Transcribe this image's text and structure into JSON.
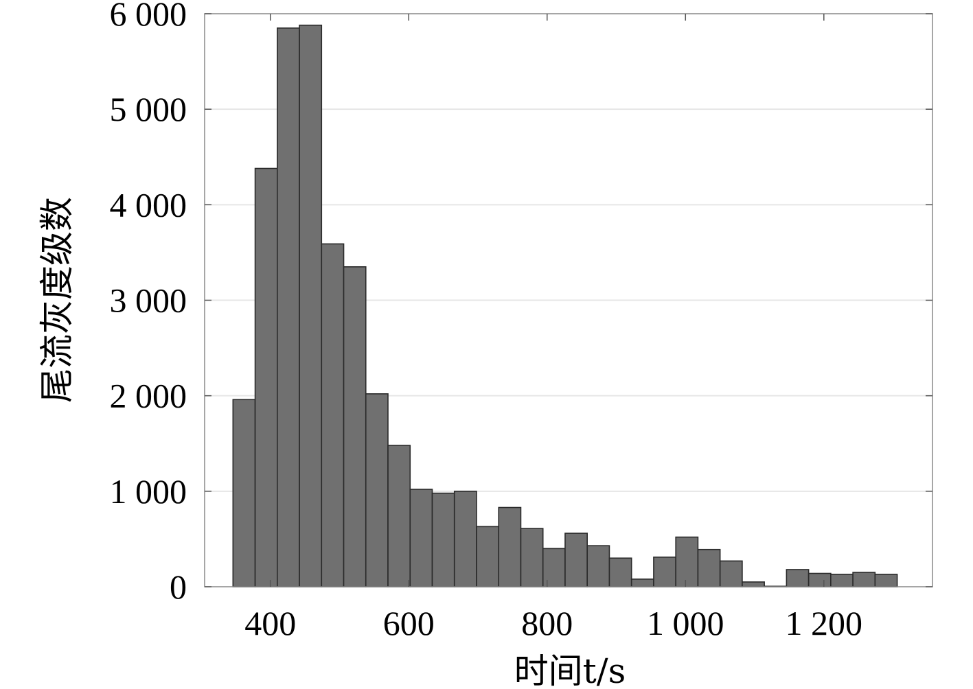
{
  "chart_data": {
    "type": "bar",
    "variant": "histogram",
    "bin_width": 32,
    "bin_start": 346,
    "bins": [
      {
        "start": 346,
        "end": 378,
        "value": 1960
      },
      {
        "start": 378,
        "end": 410,
        "value": 4380
      },
      {
        "start": 410,
        "end": 442,
        "value": 5850
      },
      {
        "start": 442,
        "end": 474,
        "value": 5880
      },
      {
        "start": 474,
        "end": 506,
        "value": 3590
      },
      {
        "start": 506,
        "end": 538,
        "value": 3350
      },
      {
        "start": 538,
        "end": 570,
        "value": 2020
      },
      {
        "start": 570,
        "end": 602,
        "value": 1480
      },
      {
        "start": 602,
        "end": 634,
        "value": 1020
      },
      {
        "start": 634,
        "end": 666,
        "value": 980
      },
      {
        "start": 666,
        "end": 698,
        "value": 1000
      },
      {
        "start": 698,
        "end": 730,
        "value": 630
      },
      {
        "start": 730,
        "end": 762,
        "value": 830
      },
      {
        "start": 762,
        "end": 794,
        "value": 610
      },
      {
        "start": 794,
        "end": 826,
        "value": 400
      },
      {
        "start": 826,
        "end": 858,
        "value": 560
      },
      {
        "start": 858,
        "end": 890,
        "value": 430
      },
      {
        "start": 890,
        "end": 922,
        "value": 300
      },
      {
        "start": 922,
        "end": 954,
        "value": 80
      },
      {
        "start": 954,
        "end": 986,
        "value": 310
      },
      {
        "start": 986,
        "end": 1018,
        "value": 520
      },
      {
        "start": 1018,
        "end": 1050,
        "value": 390
      },
      {
        "start": 1050,
        "end": 1082,
        "value": 270
      },
      {
        "start": 1082,
        "end": 1114,
        "value": 50
      },
      {
        "start": 1114,
        "end": 1146,
        "value": 5
      },
      {
        "start": 1146,
        "end": 1178,
        "value": 180
      },
      {
        "start": 1178,
        "end": 1210,
        "value": 140
      },
      {
        "start": 1210,
        "end": 1242,
        "value": 130
      },
      {
        "start": 1242,
        "end": 1274,
        "value": 150
      },
      {
        "start": 1274,
        "end": 1306,
        "value": 130
      }
    ],
    "xlabel": "时间t/s",
    "ylabel": "尾流灰度级数",
    "xlim": [
      305,
      1357
    ],
    "ylim": [
      0,
      6000
    ],
    "xticks": [
      400,
      600,
      800,
      1000,
      1200
    ],
    "xtick_labels": [
      "400",
      "600",
      "800",
      "1 000",
      "1 200"
    ],
    "yticks": [
      0,
      1000,
      2000,
      3000,
      4000,
      5000,
      6000
    ],
    "ytick_labels": [
      "0",
      "1 000",
      "2 000",
      "3 000",
      "4 000",
      "5 000",
      "6 000"
    ],
    "grid": true,
    "colors": {
      "bar_fill": "#707070",
      "bar_edge": "#2a2a2a",
      "grid": "#e6e6e6",
      "axis": "#888888"
    }
  }
}
